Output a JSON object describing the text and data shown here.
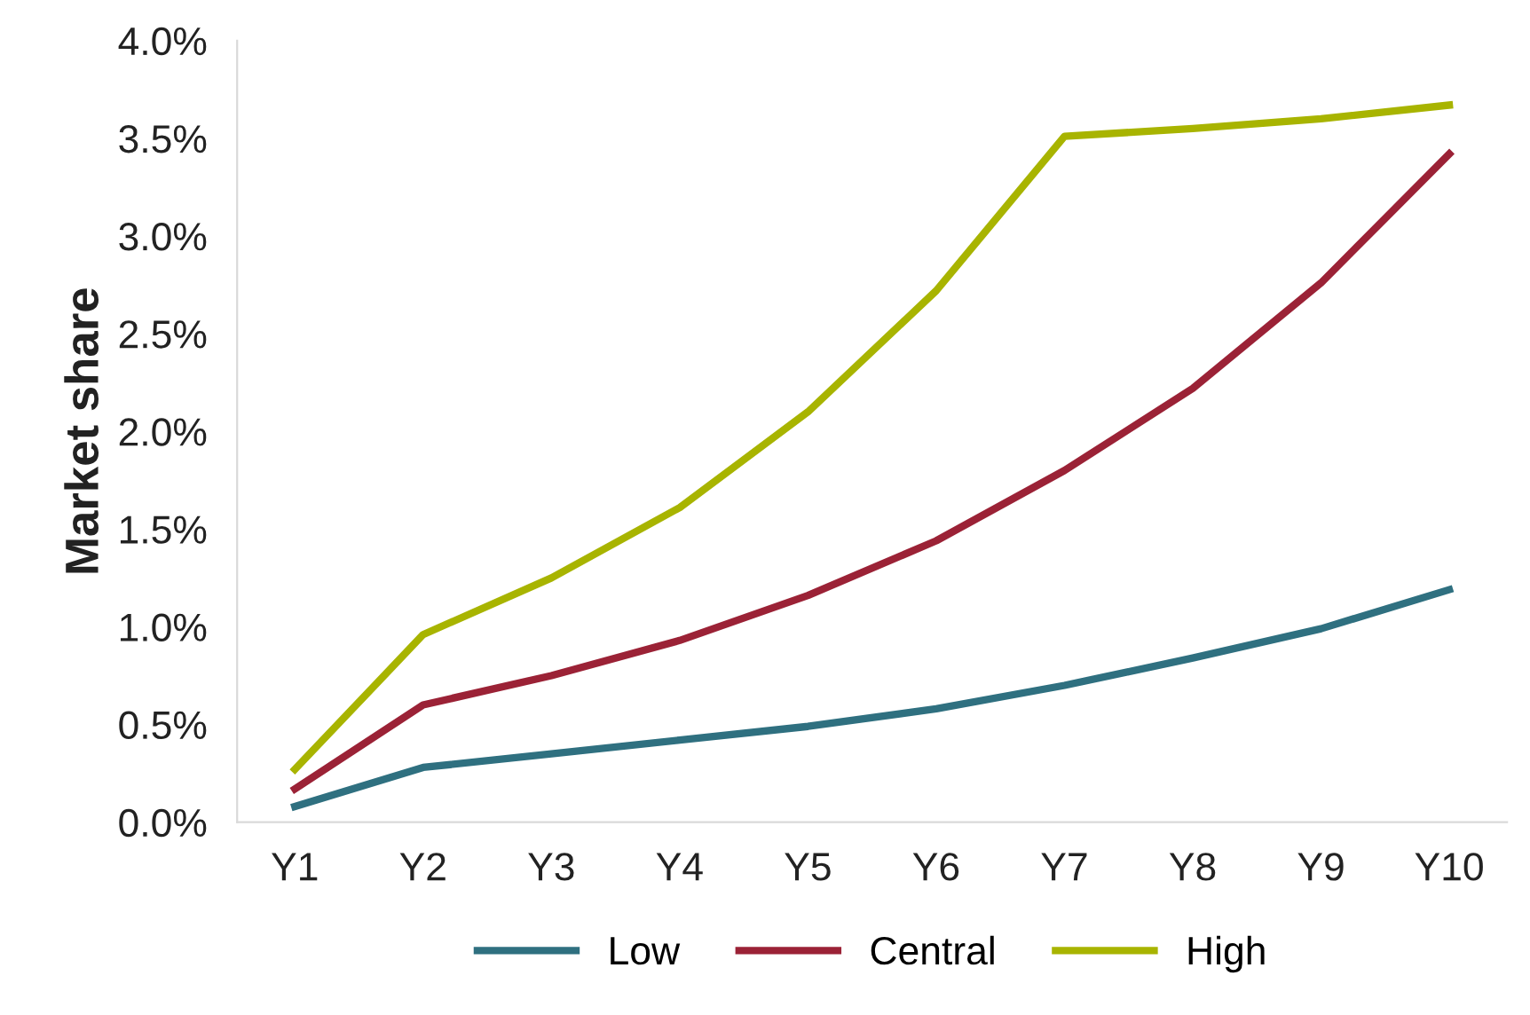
{
  "chart_data": {
    "type": "line",
    "ylabel": "Market share",
    "categories": [
      "Y1",
      "Y2",
      "Y3",
      "Y4",
      "Y5",
      "Y6",
      "Y7",
      "Y8",
      "Y9",
      "Y10"
    ],
    "series": [
      {
        "name": "Low",
        "color": "#2f7080",
        "values": [
          0.08,
          0.28,
          0.35,
          0.42,
          0.49,
          0.58,
          0.7,
          0.84,
          0.99,
          1.19
        ]
      },
      {
        "name": "Central",
        "color": "#9b2236",
        "values": [
          0.17,
          0.6,
          0.75,
          0.93,
          1.16,
          1.44,
          1.8,
          2.22,
          2.76,
          3.42
        ]
      },
      {
        "name": "High",
        "color": "#a8b400",
        "values": [
          0.27,
          0.96,
          1.25,
          1.61,
          2.1,
          2.72,
          3.51,
          3.55,
          3.6,
          3.67
        ]
      }
    ],
    "ylim": [
      0,
      4.0
    ],
    "yticks": [
      {
        "value": 0,
        "label": "0.0%"
      },
      {
        "value": 0.5,
        "label": "0.5%"
      },
      {
        "value": 1.0,
        "label": "1.0%"
      },
      {
        "value": 1.5,
        "label": "1.5%"
      },
      {
        "value": 2.0,
        "label": "2.0%"
      },
      {
        "value": 2.5,
        "label": "2.5%"
      },
      {
        "value": 3.0,
        "label": "3.0%"
      },
      {
        "value": 3.5,
        "label": "3.5%"
      },
      {
        "value": 4.0,
        "label": "4.0%"
      }
    ],
    "grid": false,
    "legend": "bottom",
    "marker": "none",
    "line_style": "solid"
  }
}
